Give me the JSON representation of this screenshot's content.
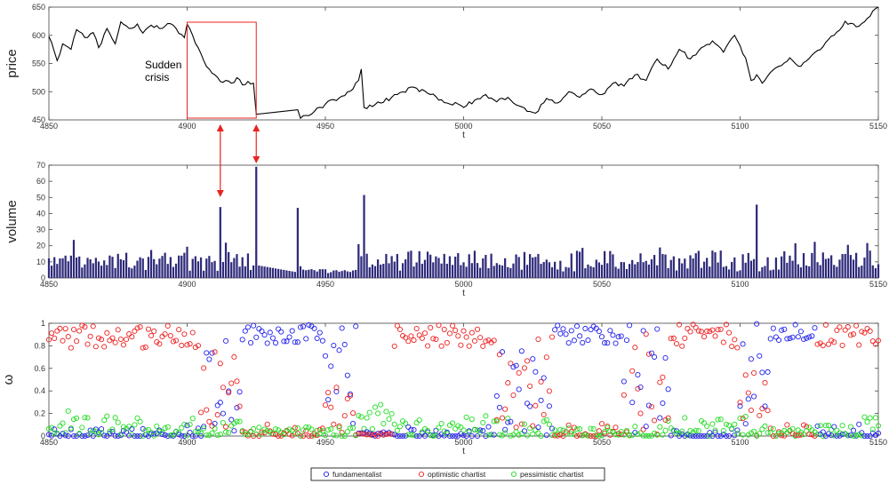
{
  "colors": {
    "price_line": "#000000",
    "volume_bar": "#2e2a7a",
    "annotation": "#e8231f",
    "fundamentalist": "#2222ee",
    "optimistic_chartist": "#ee2222",
    "pessimistic_chartist": "#22dd22"
  },
  "chart_data": [
    {
      "type": "line",
      "id": "price",
      "xlabel": "t",
      "ylabel": "price",
      "xlim": [
        4850,
        5150
      ],
      "ylim": [
        450,
        650
      ],
      "x_ticks": [
        "4850",
        "4900",
        "4950",
        "5000",
        "5050",
        "5100",
        "5150"
      ],
      "y_ticks": [
        "450",
        "500",
        "550",
        "600",
        "650"
      ],
      "annotation": {
        "text_line1": "Sudden",
        "text_line2": "crisis",
        "box_t_range": [
          4900,
          4925
        ]
      },
      "x": [
        4850,
        4853,
        4855,
        4858,
        4860,
        4863,
        4866,
        4868,
        4871,
        4874,
        4876,
        4879,
        4882,
        4884,
        4887,
        4890,
        4893,
        4896,
        4899,
        4900,
        4902,
        4904,
        4906,
        4908,
        4910,
        4912,
        4914,
        4916,
        4918,
        4920,
        4922,
        4924,
        4925,
        4940,
        4941,
        4946,
        4950,
        4956,
        4960,
        4962,
        4963,
        4964,
        4970,
        4976,
        4982,
        4988,
        4994,
        4998,
        5000,
        5004,
        5008,
        5012,
        5016,
        5020,
        5024,
        5026,
        5030,
        5034,
        5038,
        5042,
        5046,
        5050,
        5054,
        5058,
        5062,
        5066,
        5070,
        5074,
        5078,
        5082,
        5086,
        5090,
        5094,
        5098,
        5102,
        5104,
        5106,
        5108,
        5110,
        5114,
        5118,
        5122,
        5126,
        5130,
        5134,
        5138,
        5142,
        5146,
        5150
      ],
      "values": [
        598,
        555,
        585,
        575,
        610,
        596,
        605,
        578,
        612,
        585,
        624,
        612,
        620,
        604,
        618,
        612,
        621,
        612,
        596,
        620,
        600,
        578,
        555,
        540,
        530,
        518,
        520,
        515,
        525,
        512,
        518,
        515,
        460,
        468,
        453,
        465,
        478,
        492,
        505,
        520,
        540,
        472,
        480,
        495,
        508,
        495,
        480,
        478,
        472,
        485,
        495,
        482,
        490,
        475,
        465,
        462,
        488,
        480,
        500,
        490,
        505,
        495,
        515,
        510,
        530,
        520,
        558,
        540,
        575,
        558,
        578,
        590,
        570,
        600,
        560,
        520,
        530,
        515,
        528,
        545,
        560,
        545,
        565,
        580,
        600,
        625,
        615,
        630,
        650
      ]
    },
    {
      "type": "bar",
      "id": "volume",
      "xlabel": "t",
      "ylabel": "volume",
      "xlim": [
        4850,
        5150
      ],
      "ylim": [
        0,
        70
      ],
      "x_ticks": [
        "4850",
        "4900",
        "4950",
        "5000",
        "5050",
        "5100",
        "5150"
      ],
      "y_ticks": [
        "0",
        "10",
        "20",
        "30",
        "40",
        "50",
        "60",
        "70"
      ],
      "spikes": [
        {
          "t": 4912,
          "value": 44
        },
        {
          "t": 4925,
          "value": 69
        },
        {
          "t": 4940,
          "value": 43.5
        },
        {
          "t": 4964,
          "value": 51.5
        },
        {
          "t": 5106,
          "value": 45.5
        }
      ],
      "baseline_note": "remaining bars fluctuate roughly between 2 and 25"
    },
    {
      "type": "scatter",
      "id": "omega",
      "xlabel": "t",
      "ylabel": "ω",
      "xlim": [
        4850,
        5150
      ],
      "ylim": [
        0,
        1
      ],
      "x_ticks": [
        "4850",
        "4900",
        "4950",
        "5000",
        "5050",
        "5100",
        "5150"
      ],
      "y_ticks": [
        "0",
        "0.2",
        "0.4",
        "0.6",
        "0.8",
        "1"
      ],
      "series": [
        {
          "name": "fundamentalist"
        },
        {
          "name": "optimistic chartist"
        },
        {
          "name": "pessimistic chartist"
        }
      ]
    }
  ],
  "legend": {
    "placement": "bottom-center",
    "items": [
      "fundamentalist",
      "optimistic chartist",
      "pessimistic chartist"
    ]
  }
}
